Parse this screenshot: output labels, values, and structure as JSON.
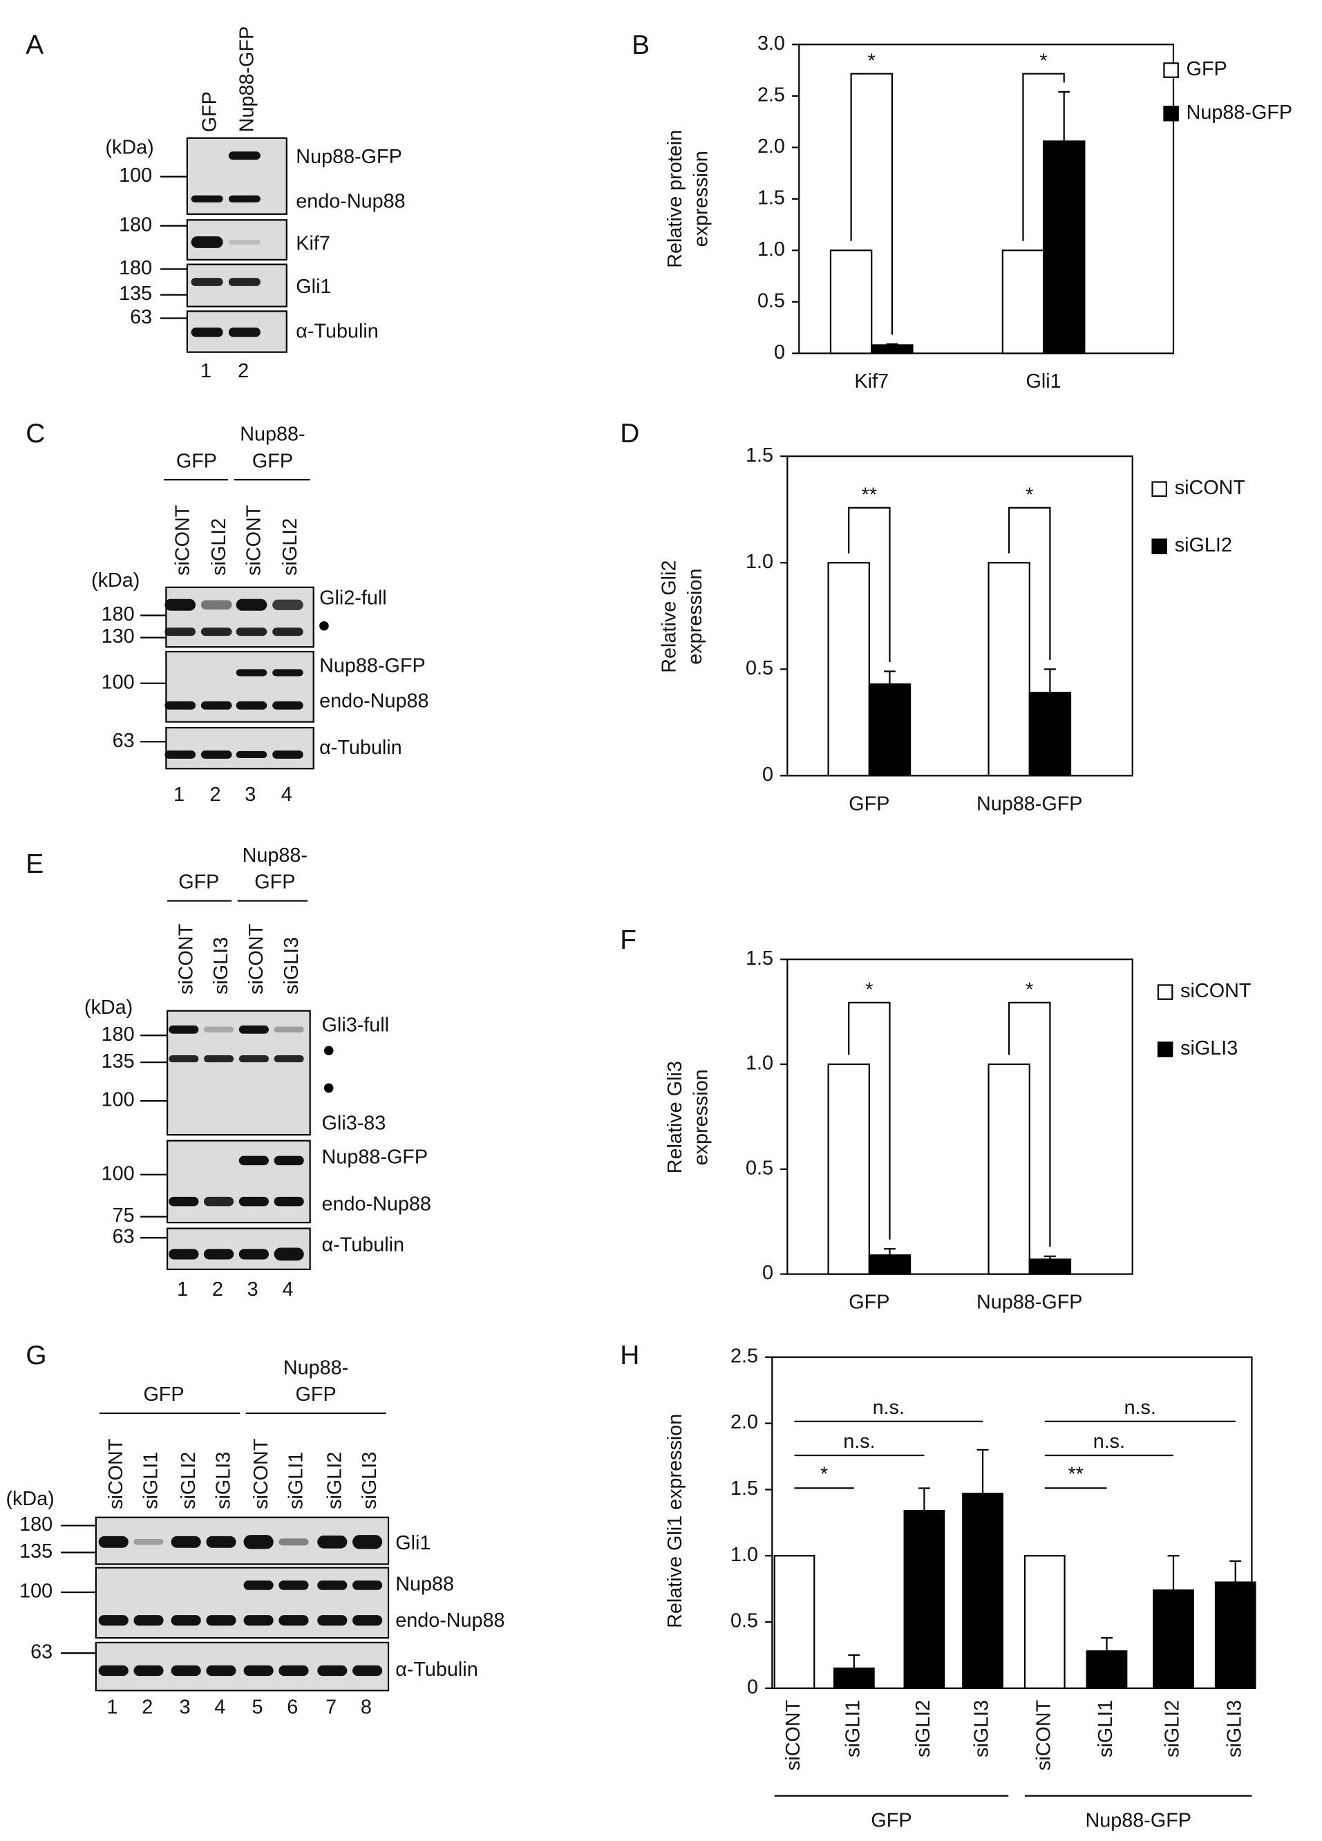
{
  "chart_data": [
    {
      "type": "bar",
      "panel": "B",
      "ylabel": [
        "Relative protein",
        "expression"
      ],
      "categories": [
        "Kif7",
        "Gli1"
      ],
      "series": [
        {
          "name": "GFP",
          "color": "#ffffff",
          "values": [
            1.0,
            1.0
          ]
        },
        {
          "name": "Nup88-GFP",
          "color": "#000000",
          "values": [
            0.08,
            2.06
          ],
          "errors": [
            0.01,
            0.48
          ]
        }
      ],
      "ylim": [
        0,
        3
      ],
      "yticks": [
        0,
        0.5,
        {
          "value": 1,
          "label": "1.0"
        },
        1.5,
        {
          "value": 2,
          "label": "2.0"
        },
        2.5,
        {
          "value": 3,
          "label": "3.0"
        }
      ],
      "annotations": [
        "*",
        "*"
      ],
      "legend": "right"
    },
    {
      "type": "bar",
      "panel": "D",
      "ylabel": [
        "Relative Gli2",
        "expression"
      ],
      "categories": [
        "GFP",
        "Nup88-GFP"
      ],
      "series": [
        {
          "name": "siCONT",
          "color": "#ffffff",
          "values": [
            1.0,
            1.0
          ]
        },
        {
          "name": "siGLI2",
          "color": "#000000",
          "values": [
            0.43,
            0.39
          ],
          "errors": [
            0.06,
            0.11
          ]
        }
      ],
      "ylim": [
        0,
        1.5
      ],
      "yticks": [
        0,
        0.5,
        {
          "value": 1,
          "label": "1.0"
        },
        1.5
      ],
      "annotations": [
        "**",
        "*"
      ],
      "legend": "right"
    },
    {
      "type": "bar",
      "panel": "F",
      "ylabel": [
        "Relative Gli3",
        "expression"
      ],
      "categories": [
        "GFP",
        "Nup88-GFP"
      ],
      "series": [
        {
          "name": "siCONT",
          "color": "#ffffff",
          "values": [
            1.0,
            1.0
          ]
        },
        {
          "name": "siGLI3",
          "color": "#000000",
          "values": [
            0.09,
            0.07
          ],
          "errors": [
            0.03,
            0.015
          ]
        }
      ],
      "ylim": [
        0,
        1.5
      ],
      "yticks": [
        0,
        0.5,
        {
          "value": 1,
          "label": "1.0"
        },
        1.5
      ],
      "annotations": [
        "*",
        "*"
      ],
      "legend": "right"
    },
    {
      "type": "bar",
      "panel": "H",
      "ylabel": "Relative Gli1 expression",
      "categories": [
        "siCONT",
        "siGLI1",
        "siGLI2",
        "siGLI3",
        "siCONT",
        "siGLI1",
        "siGLI2",
        "siGLI3"
      ],
      "groups": [
        "GFP",
        "Nup88-GFP"
      ],
      "values": [
        1.0,
        0.15,
        1.34,
        1.47,
        1.0,
        0.28,
        0.74,
        0.8
      ],
      "errors": [
        0,
        0.1,
        0.17,
        0.33,
        0,
        0.1,
        0.26,
        0.16
      ],
      "colors": [
        "#ffffff",
        "#000000",
        "#000000",
        "#000000",
        "#ffffff",
        "#000000",
        "#000000",
        "#000000"
      ],
      "ylim": [
        0,
        2.5
      ],
      "yticks": [
        0,
        0.5,
        {
          "value": 1,
          "label": "1.0"
        },
        1.5,
        {
          "value": 2,
          "label": "2.0"
        },
        2.5
      ],
      "annotations": [
        "*",
        "n.s.",
        "n.s.",
        "**",
        "n.s.",
        "n.s."
      ]
    }
  ],
  "blots": [
    {
      "panel": "A",
      "lanes": [
        "GFP",
        "Nup88-GFP"
      ],
      "unit": "(kDa)",
      "markers": [
        100,
        180,
        180,
        135,
        63
      ],
      "bands": [
        "Nup88-GFP",
        "endo-Nup88",
        "Kif7",
        "Gli1",
        "α-Tubulin"
      ],
      "lane_numbers": [
        1,
        2
      ],
      "groups": []
    },
    {
      "panel": "C",
      "groups": [
        [
          "GFP"
        ],
        [
          "Nup88-",
          "GFP"
        ]
      ],
      "lanes": [
        "siCONT",
        "siGLI2",
        "siCONT",
        "siGLI2"
      ],
      "unit": "(kDa)",
      "markers": [
        180,
        130,
        100,
        63
      ],
      "bands": [
        "Gli2-full",
        "Nup88-GFP",
        "endo-Nup88",
        "α-Tubulin"
      ],
      "lane_numbers": [
        1,
        2,
        3,
        4
      ]
    },
    {
      "panel": "E",
      "groups": [
        [
          "GFP"
        ],
        [
          "Nup88-",
          "GFP"
        ]
      ],
      "lanes": [
        "siCONT",
        "siGLI3",
        "siCONT",
        "siGLI3"
      ],
      "unit": "(kDa)",
      "markers": [
        180,
        135,
        100,
        100,
        75,
        63
      ],
      "bands": [
        "Gli3-full",
        "Gli3-83",
        "Nup88-GFP",
        "endo-Nup88",
        "α-Tubulin"
      ],
      "lane_numbers": [
        1,
        2,
        3,
        4
      ]
    },
    {
      "panel": "G",
      "groups": [
        [
          "GFP"
        ],
        [
          "Nup88-",
          "GFP"
        ]
      ],
      "lanes": [
        "siCONT",
        "siGLI1",
        "siGLI2",
        "siGLI3",
        "siCONT",
        "siGLI1",
        "siGLI2",
        "siGLI3"
      ],
      "unit": "(kDa)",
      "markers": [
        180,
        135,
        100,
        63
      ],
      "bands": [
        "Gli1",
        "Nup88",
        "endo-Nup88",
        "α-Tubulin"
      ],
      "lane_numbers": [
        1,
        2,
        3,
        4,
        5,
        6,
        7,
        8
      ]
    }
  ]
}
